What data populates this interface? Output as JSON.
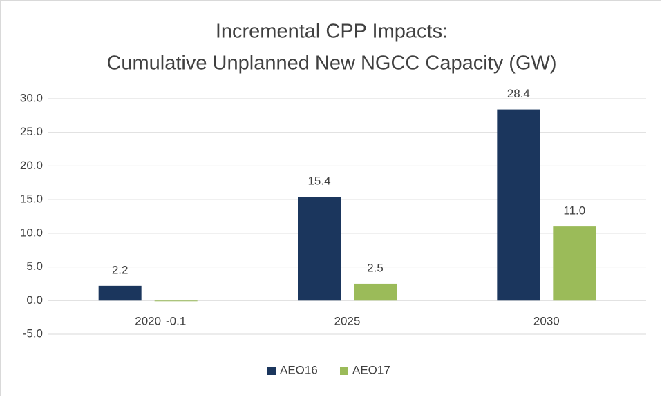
{
  "chart_data": {
    "type": "bar",
    "title": [
      "Incremental CPP Impacts:",
      "Cumulative Unplanned New NGCC Capacity (GW)"
    ],
    "categories": [
      "2020",
      "2025",
      "2030"
    ],
    "series": [
      {
        "name": "AEO16",
        "color": "#1b365d",
        "values": [
          2.2,
          15.4,
          28.4
        ],
        "value_labels": [
          "2.2",
          "15.4",
          "28.4"
        ]
      },
      {
        "name": "AEO17",
        "color": "#9bbb59",
        "values": [
          -0.1,
          2.5,
          11.0
        ],
        "value_labels": [
          "-0.1",
          "2.5",
          "11.0"
        ]
      }
    ],
    "ylim": [
      -5,
      30
    ],
    "yticks": [
      {
        "value": -5,
        "label": "-5.0"
      },
      {
        "value": 0,
        "label": "0.0"
      },
      {
        "value": 5,
        "label": "5.0"
      },
      {
        "value": 10,
        "label": "10.0"
      },
      {
        "value": 15,
        "label": "15.0"
      },
      {
        "value": 20,
        "label": "20.0"
      },
      {
        "value": 25,
        "label": "25.0"
      },
      {
        "value": 30,
        "label": "30.0"
      }
    ],
    "grid": true,
    "legend": "bottom"
  }
}
